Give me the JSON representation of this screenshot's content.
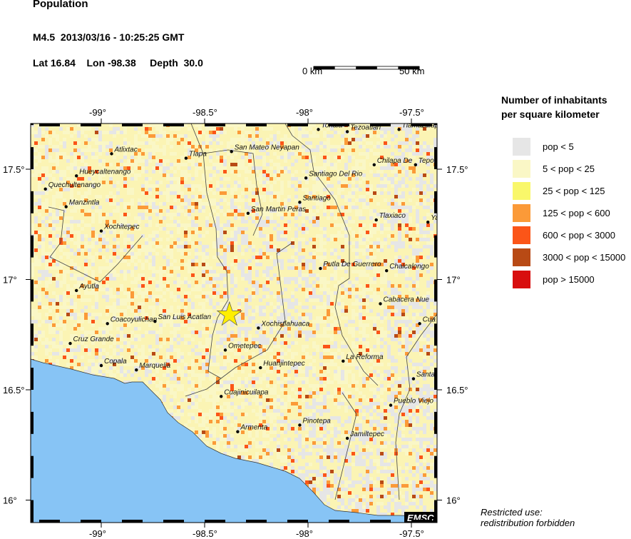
{
  "header": {
    "title": "Population",
    "event": "M4.5  2013/03/16 - 10:25:25 GMT",
    "location": "Lat 16.84    Lon -98.38     Depth  30.0"
  },
  "scale_bar": {
    "start_label": "0 km",
    "end_label": "50 km"
  },
  "map": {
    "lon_ticks": [
      "-99°",
      "-98.5°",
      "-98°",
      "-97.5°"
    ],
    "lat_ticks": [
      "17.5°",
      "17°",
      "16.5°",
      "16°"
    ],
    "epicenter": {
      "lat": 16.84,
      "lon": -98.38,
      "marker": "star-icon",
      "color": "#ffee00"
    },
    "ocean_color": "#87c4f5",
    "logo": "EMSC",
    "cities": [
      {
        "name": "Tonala",
        "lon": -97.95,
        "lat": 17.68
      },
      {
        "name": "Tezoatlan",
        "lon": -97.81,
        "lat": 17.67
      },
      {
        "name": "Tlamazulap",
        "lon": -97.56,
        "lat": 17.68
      },
      {
        "name": "Atlixtac",
        "lon": -98.95,
        "lat": 17.57
      },
      {
        "name": "Tlapa",
        "lon": -98.59,
        "lat": 17.55
      },
      {
        "name": "San Mateo Neyapan",
        "lon": -98.37,
        "lat": 17.58
      },
      {
        "name": "Hueycaltenango",
        "lon": -99.12,
        "lat": 17.47
      },
      {
        "name": "Quechultenango",
        "lon": -99.27,
        "lat": 17.41
      },
      {
        "name": "Manzintla",
        "lon": -99.17,
        "lat": 17.33
      },
      {
        "name": "Xochitepec",
        "lon": -99.0,
        "lat": 17.22
      },
      {
        "name": "Santiago Del Rio",
        "lon": -98.01,
        "lat": 17.46
      },
      {
        "name": "Chilapa De",
        "lon": -97.68,
        "lat": 17.52
      },
      {
        "name": "Tepo",
        "lon": -97.48,
        "lat": 17.52
      },
      {
        "name": "Santiago",
        "lon": -98.04,
        "lat": 17.35
      },
      {
        "name": "San Martin Peras",
        "lon": -98.29,
        "lat": 17.3
      },
      {
        "name": "Tlaxiaco",
        "lon": -97.67,
        "lat": 17.27
      },
      {
        "name": "Ya",
        "lon": -97.42,
        "lat": 17.26
      },
      {
        "name": "Putla De Guerrero",
        "lon": -97.94,
        "lat": 17.05
      },
      {
        "name": "Chalcalongo",
        "lon": -97.62,
        "lat": 17.04
      },
      {
        "name": "Ayutla",
        "lon": -99.12,
        "lat": 16.95
      },
      {
        "name": "Cabacera Nue",
        "lon": -97.65,
        "lat": 16.89
      },
      {
        "name": "Cua",
        "lon": -97.46,
        "lat": 16.8
      },
      {
        "name": "Coacoyulichan",
        "lon": -98.97,
        "lat": 16.8
      },
      {
        "name": "San Luis Acatlan",
        "lon": -98.74,
        "lat": 16.81
      },
      {
        "name": "Xochistlahuaca",
        "lon": -98.24,
        "lat": 16.78
      },
      {
        "name": "Cruz Grande",
        "lon": -99.15,
        "lat": 16.71
      },
      {
        "name": "Ometepec",
        "lon": -98.4,
        "lat": 16.68
      },
      {
        "name": "Copala",
        "lon": -99.0,
        "lat": 16.61
      },
      {
        "name": "Marquelia",
        "lon": -98.83,
        "lat": 16.59
      },
      {
        "name": "Huanjintepec",
        "lon": -98.23,
        "lat": 16.6
      },
      {
        "name": "La Reforma",
        "lon": -97.83,
        "lat": 16.63
      },
      {
        "name": "Santa",
        "lon": -97.49,
        "lat": 16.55
      },
      {
        "name": "Cuajinicuilapa",
        "lon": -98.42,
        "lat": 16.47
      },
      {
        "name": "Pueblo Viejo",
        "lon": -97.6,
        "lat": 16.43
      },
      {
        "name": "Pinotepa",
        "lon": -98.04,
        "lat": 16.34
      },
      {
        "name": "Armenta",
        "lon": -98.34,
        "lat": 16.31
      },
      {
        "name": "Jamiltepec",
        "lon": -97.81,
        "lat": 16.28
      }
    ]
  },
  "legend": {
    "title_line1": "Number of inhabitants",
    "title_line2": "per square kilometer",
    "items": [
      {
        "label": "pop < 5",
        "color": "#e6e6e6"
      },
      {
        "label": "5 < pop < 25",
        "color": "#faf7c6"
      },
      {
        "label": "25 < pop < 125",
        "color": "#f9f76a"
      },
      {
        "label": "125 < pop < 600",
        "color": "#fb9a38"
      },
      {
        "label": "600 < pop < 3000",
        "color": "#fb5518"
      },
      {
        "label": "3000 < pop < 15000",
        "color": "#b84a15"
      },
      {
        "label": "pop > 15000",
        "color": "#d80e0e"
      }
    ]
  },
  "footer": {
    "line1": "Restricted use:",
    "line2": "redistribution forbidden"
  }
}
